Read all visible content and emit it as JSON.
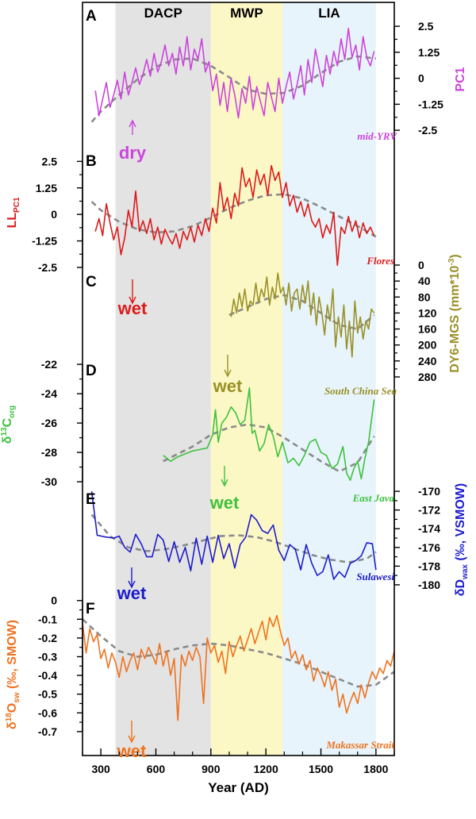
{
  "chart_data": {
    "type": "line",
    "periods": [
      {
        "label": "DACP",
        "start": 380,
        "end": 900,
        "color": "#e3e3e3"
      },
      {
        "label": "MWP",
        "start": 900,
        "end": 1290,
        "color": "#fcf8c6"
      },
      {
        "label": "LIA",
        "start": 1290,
        "end": 1800,
        "color": "#e7f4fb"
      }
    ],
    "xaxis": {
      "label": "Year (AD)",
      "min": 200,
      "max": 1900,
      "ticks": [
        "300",
        "600",
        "900",
        "1200",
        "1500",
        "1800"
      ]
    },
    "panels": [
      {
        "id": "A",
        "letter": "A",
        "color": "#cc44dd",
        "axis_side": "right",
        "ylabel": "PC1",
        "ylim": [
          -2.8,
          3.0
        ],
        "ticks": [
          "2.5",
          "1.25",
          "0",
          "-1.25",
          "-2.5"
        ],
        "site": "mid-YRV",
        "annotation": "dry",
        "arrow": "up",
        "x": [
          270,
          290,
          310,
          330,
          350,
          370,
          390,
          410,
          430,
          450,
          470,
          490,
          510,
          530,
          550,
          570,
          590,
          610,
          630,
          650,
          670,
          690,
          710,
          730,
          750,
          770,
          790,
          810,
          830,
          850,
          870,
          890,
          910,
          930,
          950,
          970,
          990,
          1010,
          1030,
          1050,
          1070,
          1090,
          1110,
          1130,
          1150,
          1170,
          1190,
          1210,
          1230,
          1250,
          1270,
          1290,
          1310,
          1330,
          1350,
          1370,
          1390,
          1410,
          1430,
          1450,
          1470,
          1490,
          1510,
          1530,
          1550,
          1570,
          1590,
          1610,
          1630,
          1650,
          1670,
          1690,
          1710,
          1730,
          1750,
          1770,
          1790
        ],
        "y": [
          -0.6,
          -1.8,
          -1.0,
          -0.2,
          -1.4,
          -0.8,
          -0.1,
          -1.0,
          0.3,
          -0.8,
          -0.2,
          0.5,
          -0.3,
          0.2,
          0.9,
          0.1,
          1.2,
          0.3,
          0.8,
          1.6,
          0.6,
          1.2,
          0.2,
          1.5,
          0.6,
          2.0,
          0.4,
          1.4,
          0.9,
          1.9,
          0.3,
          0.8,
          -0.6,
          0.2,
          -1.3,
          -0.2,
          -1.6,
          0.0,
          -0.8,
          -1.9,
          -0.5,
          -1.2,
          0.1,
          -1.5,
          -0.4,
          -1.1,
          -1.8,
          -0.2,
          -0.9,
          -1.6,
          0.0,
          -1.2,
          -0.4,
          0.3,
          -1.0,
          -0.3,
          0.6,
          -0.8,
          0.9,
          -0.2,
          1.4,
          0.5,
          -0.4,
          1.1,
          0.2,
          1.3,
          0.6,
          1.9,
          0.9,
          2.4,
          1.0,
          1.6,
          0.4,
          2.0,
          1.0,
          0.6,
          1.3
        ],
        "trend_x": [
          250,
          300,
          400,
          500,
          600,
          700,
          800,
          900,
          1000,
          1100,
          1200,
          1300,
          1400,
          1500,
          1600,
          1700,
          1800
        ],
        "trend_y": [
          -2.1,
          -1.6,
          -0.8,
          -0.05,
          0.55,
          0.9,
          0.95,
          0.6,
          0.05,
          -0.55,
          -0.75,
          -0.7,
          -0.35,
          0.25,
          0.8,
          1.05,
          0.95
        ]
      },
      {
        "id": "B",
        "letter": "B",
        "color": "#dd1a1a",
        "axis_side": "left",
        "ylabel": "LL",
        "ylabel_sub": "PC1",
        "ylim": [
          -2.8,
          3.0
        ],
        "ticks": [
          "2.5",
          "1.25",
          "0",
          "-1.25",
          "-2.5"
        ],
        "site": "Flores",
        "annotation": "wet",
        "arrow": "down",
        "x": [
          270,
          290,
          310,
          330,
          350,
          370,
          390,
          410,
          430,
          450,
          470,
          490,
          510,
          530,
          550,
          570,
          590,
          610,
          630,
          650,
          670,
          690,
          710,
          730,
          750,
          770,
          790,
          810,
          830,
          850,
          870,
          890,
          910,
          930,
          950,
          970,
          990,
          1010,
          1030,
          1050,
          1070,
          1090,
          1110,
          1130,
          1150,
          1170,
          1190,
          1210,
          1230,
          1250,
          1270,
          1290,
          1310,
          1330,
          1350,
          1370,
          1390,
          1410,
          1430,
          1450,
          1470,
          1490,
          1510,
          1530,
          1550,
          1570,
          1590,
          1610,
          1630,
          1650,
          1670,
          1690,
          1710,
          1730,
          1750,
          1770,
          1790
        ],
        "y": [
          -0.8,
          -0.2,
          -1.0,
          0.5,
          -0.4,
          -1.2,
          -0.6,
          -1.9,
          -1.1,
          0.2,
          -0.6,
          1.1,
          -0.8,
          -0.3,
          -0.9,
          -0.2,
          -1.2,
          -0.6,
          -1.4,
          -0.7,
          -1.1,
          -1.4,
          -0.9,
          -1.6,
          -0.8,
          -1.2,
          -0.6,
          -1.3,
          -0.5,
          -1.0,
          -0.2,
          -0.8,
          0.3,
          -0.4,
          1.5,
          0.2,
          0.8,
          -0.2,
          1.0,
          0.4,
          2.2,
          1.3,
          1.7,
          0.8,
          2.1,
          1.4,
          1.9,
          0.9,
          2.3,
          1.6,
          2.0,
          0.8,
          1.5,
          0.4,
          0.9,
          0.1,
          0.6,
          -0.1,
          0.5,
          -0.3,
          -0.6,
          -0.2,
          -1.1,
          -0.5,
          -0.9,
          0.1,
          -2.4,
          -0.6,
          -0.9,
          -0.1,
          -0.8,
          -0.3,
          -1.1,
          -0.4,
          -0.9,
          -0.6,
          -1.0
        ],
        "trend_x": [
          250,
          300,
          400,
          500,
          600,
          700,
          800,
          900,
          1000,
          1100,
          1200,
          1300,
          1400,
          1500,
          1600,
          1700,
          1800
        ],
        "trend_y": [
          0.6,
          0.2,
          -0.35,
          -0.7,
          -0.85,
          -0.8,
          -0.55,
          -0.15,
          0.3,
          0.65,
          0.9,
          0.95,
          0.75,
          0.35,
          -0.1,
          -0.55,
          -1.05
        ]
      },
      {
        "id": "C",
        "letter": "C",
        "color": "#9a9128",
        "axis_side": "right",
        "ylabel": "DY6-MGS (mm*10",
        "ylabel_sup": "-3",
        "ylabel_end": ")",
        "ylim": [
          290,
          0
        ],
        "inverted": true,
        "ticks": [
          "0",
          "40",
          "80",
          "120",
          "160",
          "200",
          "240",
          "280"
        ],
        "site": "South China Sea",
        "annotation": "wet",
        "arrow": "down",
        "x": [
          1010,
          1025,
          1040,
          1055,
          1070,
          1085,
          1100,
          1115,
          1130,
          1145,
          1160,
          1175,
          1190,
          1205,
          1220,
          1235,
          1250,
          1265,
          1280,
          1295,
          1310,
          1325,
          1340,
          1355,
          1370,
          1385,
          1400,
          1415,
          1430,
          1445,
          1460,
          1475,
          1490,
          1505,
          1520,
          1535,
          1550,
          1565,
          1580,
          1595,
          1610,
          1625,
          1640,
          1655,
          1670,
          1685,
          1700,
          1715,
          1730,
          1745,
          1760,
          1775,
          1790
        ],
        "y": [
          130,
          85,
          120,
          70,
          105,
          60,
          115,
          90,
          100,
          45,
          95,
          60,
          80,
          30,
          100,
          55,
          85,
          20,
          70,
          55,
          100,
          45,
          115,
          70,
          60,
          110,
          50,
          95,
          40,
          125,
          70,
          150,
          80,
          120,
          175,
          100,
          140,
          60,
          205,
          130,
          180,
          100,
          210,
          140,
          230,
          90,
          170,
          130,
          185,
          140,
          160,
          110,
          120
        ],
        "trend_x": [
          1000,
          1100,
          1200,
          1300,
          1400,
          1500,
          1600,
          1700,
          1790
        ],
        "trend_y": [
          125,
          105,
          85,
          75,
          90,
          120,
          150,
          160,
          125
        ]
      },
      {
        "id": "D",
        "letter": "D",
        "color": "#3ec13e",
        "axis_side": "left",
        "ylabel": "δ",
        "ylabel_sup": "13",
        "ylabel_end": "C",
        "ylabel_sub": "org",
        "ylim": [
          -30.7,
          -21.4
        ],
        "ticks": [
          "-22",
          "-24",
          "-26",
          "-28",
          "-30"
        ],
        "site": "East Java",
        "annotation": "wet",
        "arrow": "down",
        "x": [
          640,
          680,
          720,
          760,
          800,
          840,
          880,
          910,
          925,
          940,
          960,
          985,
          1010,
          1035,
          1060,
          1085,
          1110,
          1125,
          1140,
          1165,
          1190,
          1215,
          1240,
          1265,
          1290,
          1320,
          1350,
          1380,
          1410,
          1440,
          1470,
          1500,
          1530,
          1560,
          1590,
          1620,
          1640,
          1660,
          1680,
          1700,
          1720,
          1740,
          1760,
          1790
        ],
        "y": [
          -28.2,
          -28.6,
          -28.3,
          -28.1,
          -27.9,
          -27.8,
          -27.7,
          -26.8,
          -25.1,
          -27.3,
          -26.0,
          -25.6,
          -24.9,
          -25.3,
          -26.1,
          -25.8,
          -23.6,
          -26.7,
          -26.5,
          -27.9,
          -27.4,
          -26.1,
          -26.9,
          -28.3,
          -27.3,
          -28.7,
          -28.4,
          -28.9,
          -28.2,
          -27.3,
          -27.1,
          -28.0,
          -28.2,
          -29.1,
          -28.8,
          -27.6,
          -29.4,
          -29.9,
          -29.1,
          -28.6,
          -29.8,
          -28.4,
          -27.3,
          -24.4
        ],
        "trend_x": [
          640,
          800,
          900,
          1000,
          1100,
          1200,
          1300,
          1400,
          1500,
          1600,
          1700,
          1790
        ],
        "trend_y": [
          -28.6,
          -27.6,
          -26.8,
          -26.3,
          -26.1,
          -26.3,
          -27.0,
          -27.8,
          -28.6,
          -29.3,
          -28.7,
          -26.9
        ]
      },
      {
        "id": "E",
        "letter": "E",
        "color": "#1c1ccc",
        "axis_side": "right",
        "ylabel": "δD",
        "ylabel_sub": "wax",
        "ylabel_end": " (‰, VSMOW)",
        "ylim": [
          -180.6,
          -169.4
        ],
        "ticks": [
          "-170",
          "-172",
          "-174",
          "-176",
          "-178",
          "-180"
        ],
        "site": "Sulawesi",
        "annotation": "wet",
        "arrow": "down",
        "x": [
          250,
          280,
          330,
          370,
          400,
          430,
          460,
          490,
          520,
          550,
          580,
          610,
          640,
          670,
          700,
          730,
          760,
          790,
          820,
          850,
          880,
          910,
          940,
          970,
          1000,
          1030,
          1060,
          1090,
          1120,
          1150,
          1180,
          1210,
          1240,
          1270,
          1300,
          1330,
          1360,
          1390,
          1420,
          1450,
          1480,
          1510,
          1540,
          1570,
          1600,
          1630,
          1660,
          1690,
          1720,
          1750,
          1780,
          1800
        ],
        "y": [
          -170.0,
          -174.7,
          -174.9,
          -175.0,
          -174.8,
          -176.0,
          -176.5,
          -174.6,
          -175.6,
          -177.0,
          -177.0,
          -174.6,
          -175.2,
          -177.5,
          -175.4,
          -177.6,
          -176.0,
          -178.5,
          -175.0,
          -177.8,
          -174.8,
          -177.6,
          -174.7,
          -177.2,
          -175.6,
          -178.2,
          -175.7,
          -174.9,
          -172.5,
          -173.1,
          -174.2,
          -174.5,
          -173.6,
          -176.3,
          -177.4,
          -175.7,
          -176.2,
          -178.4,
          -175.7,
          -177.7,
          -179.0,
          -178.6,
          -176.8,
          -179.4,
          -178.6,
          -179.2,
          -177.7,
          -177.4,
          -176.9,
          -175.5,
          -175.6,
          -178.4
        ],
        "trend_x": [
          250,
          350,
          450,
          550,
          650,
          750,
          850,
          950,
          1050,
          1150,
          1250,
          1350,
          1450,
          1550,
          1650,
          1750,
          1800
        ],
        "trend_y": [
          -172.5,
          -174.8,
          -176.0,
          -176.4,
          -176.2,
          -175.8,
          -175.3,
          -174.8,
          -174.7,
          -174.9,
          -175.4,
          -176.1,
          -176.8,
          -177.3,
          -177.6,
          -177.2,
          -176.5
        ]
      },
      {
        "id": "F",
        "letter": "F",
        "color": "#ee7320",
        "axis_side": "left",
        "ylabel": "δ",
        "ylabel_sup": "18",
        "ylabel_end": "O",
        "ylabel_sub": "sw",
        "ylabel_tail": " (‰, SMOW)",
        "ylim": [
          -0.76,
          0.02
        ],
        "ticks": [
          "0",
          "-0.1",
          "-0.2",
          "-0.3",
          "-0.4",
          "-0.5",
          "-0.6",
          "-0.7"
        ],
        "site": "Makassar Strait",
        "annotation": "wet",
        "arrow": "down",
        "x": [
          200,
          220,
          240,
          260,
          280,
          300,
          320,
          340,
          360,
          380,
          400,
          420,
          440,
          460,
          480,
          500,
          520,
          540,
          560,
          580,
          600,
          620,
          640,
          660,
          680,
          700,
          720,
          740,
          760,
          780,
          800,
          820,
          840,
          860,
          880,
          900,
          920,
          940,
          960,
          980,
          1000,
          1020,
          1040,
          1060,
          1080,
          1100,
          1120,
          1140,
          1160,
          1180,
          1200,
          1220,
          1240,
          1260,
          1280,
          1300,
          1320,
          1340,
          1360,
          1380,
          1400,
          1420,
          1440,
          1460,
          1480,
          1500,
          1520,
          1540,
          1560,
          1580,
          1600,
          1620,
          1640,
          1660,
          1680,
          1700,
          1720,
          1740,
          1760,
          1780,
          1800,
          1820,
          1840,
          1860,
          1880,
          1900
        ],
        "y": [
          -0.12,
          -0.28,
          -0.15,
          -0.22,
          -0.18,
          -0.31,
          -0.26,
          -0.36,
          -0.28,
          -0.33,
          -0.41,
          -0.3,
          -0.38,
          -0.32,
          -0.28,
          -0.37,
          -0.26,
          -0.31,
          -0.25,
          -0.29,
          -0.34,
          -0.23,
          -0.35,
          -0.27,
          -0.4,
          -0.31,
          -0.64,
          -0.29,
          -0.35,
          -0.27,
          -0.32,
          -0.25,
          -0.3,
          -0.55,
          -0.2,
          -0.28,
          -0.24,
          -0.33,
          -0.27,
          -0.39,
          -0.22,
          -0.3,
          -0.24,
          -0.19,
          -0.27,
          -0.21,
          -0.15,
          -0.23,
          -0.17,
          -0.11,
          -0.21,
          -0.09,
          -0.14,
          -0.08,
          -0.17,
          -0.24,
          -0.2,
          -0.31,
          -0.27,
          -0.34,
          -0.29,
          -0.37,
          -0.32,
          -0.43,
          -0.36,
          -0.4,
          -0.46,
          -0.38,
          -0.48,
          -0.42,
          -0.57,
          -0.5,
          -0.6,
          -0.54,
          -0.49,
          -0.55,
          -0.45,
          -0.52,
          -0.44,
          -0.38,
          -0.42,
          -0.36,
          -0.39,
          -0.32,
          -0.35,
          -0.27
        ],
        "trend_x": [
          200,
          300,
          400,
          500,
          600,
          700,
          800,
          900,
          1000,
          1100,
          1200,
          1300,
          1400,
          1500,
          1600,
          1700,
          1800,
          1900
        ],
        "trend_y": [
          -0.1,
          -0.19,
          -0.27,
          -0.3,
          -0.29,
          -0.26,
          -0.24,
          -0.23,
          -0.24,
          -0.26,
          -0.28,
          -0.31,
          -0.34,
          -0.38,
          -0.42,
          -0.46,
          -0.45,
          -0.38
        ]
      }
    ]
  }
}
